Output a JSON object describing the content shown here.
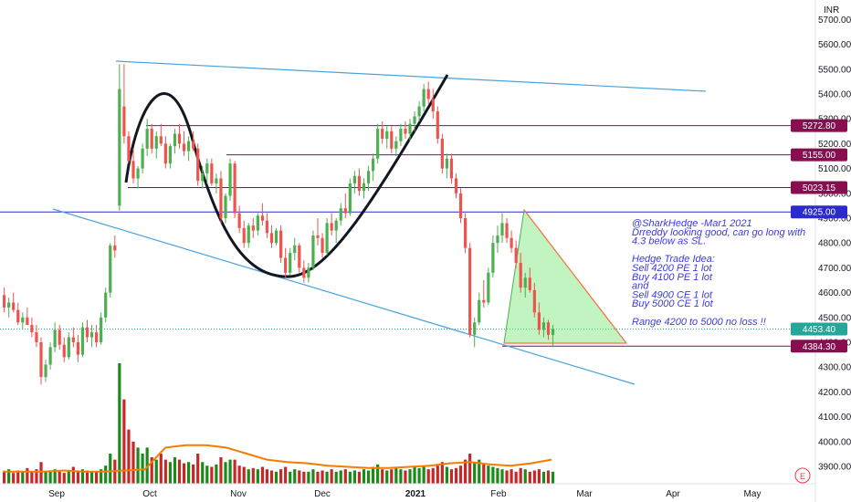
{
  "chart_data": {
    "type": "candlestick",
    "instrument_currency": "INR",
    "x_ticks": [
      "Sep",
      "Oct",
      "Nov",
      "Dec",
      "2021",
      "Feb",
      "Mar",
      "Apr",
      "May"
    ],
    "y_ticks": [
      "3900.00",
      "4000.00",
      "4100.00",
      "4200.00",
      "4300.00",
      "4400.00",
      "4500.00",
      "4600.00",
      "4700.00",
      "4800.00",
      "4900.00",
      "5000.00",
      "5100.00",
      "5200.00",
      "5300.00",
      "5400.00",
      "5500.00",
      "5600.00",
      "5700.00"
    ],
    "ylim": [
      3860,
      5730
    ],
    "price_labels": [
      {
        "text": "5272.80",
        "value": 5272.8,
        "color": "#880e4f"
      },
      {
        "text": "5155.00",
        "value": 5155.0,
        "color": "#880e4f"
      },
      {
        "text": "5023.15",
        "value": 5023.15,
        "color": "#880e4f"
      },
      {
        "text": "4925.00",
        "value": 4925.0,
        "color": "#2a2ad0"
      },
      {
        "text": "4453.40",
        "value": 4453.4,
        "color": "#26a69a"
      },
      {
        "text": "4384.30",
        "value": 4384.3,
        "color": "#880e4f"
      }
    ],
    "annotation_lines": [
      "@SharkHedge -Mar1 2021",
      "Drreddy looking good, can go long with",
      "4.3 below as SL.",
      "",
      "Hedge Trade Idea:",
      "Sell 4200 PE 1 lot",
      "Buy 4100 PE 1 lot",
      "and",
      "Sell 4900 CE 1 lot",
      "Buy 5000 CE 1 lot",
      "",
      "Range 4200 to 5000 no loss !!"
    ],
    "candles": [
      [
        4590,
        4620,
        4520,
        4540
      ],
      [
        4540,
        4580,
        4500,
        4560
      ],
      [
        4560,
        4600,
        4520,
        4530
      ],
      [
        4530,
        4560,
        4470,
        4480
      ],
      [
        4480,
        4520,
        4450,
        4500
      ],
      [
        4500,
        4540,
        4470,
        4470
      ],
      [
        4470,
        4500,
        4420,
        4440
      ],
      [
        4440,
        4470,
        4380,
        4400
      ],
      [
        4400,
        4420,
        4230,
        4260
      ],
      [
        4260,
        4330,
        4240,
        4310
      ],
      [
        4310,
        4400,
        4290,
        4380
      ],
      [
        4380,
        4480,
        4360,
        4450
      ],
      [
        4450,
        4470,
        4370,
        4390
      ],
      [
        4390,
        4420,
        4320,
        4340
      ],
      [
        4340,
        4440,
        4330,
        4420
      ],
      [
        4420,
        4460,
        4380,
        4400
      ],
      [
        4400,
        4430,
        4320,
        4350
      ],
      [
        4350,
        4480,
        4340,
        4460
      ],
      [
        4460,
        4490,
        4400,
        4420
      ],
      [
        4420,
        4470,
        4380,
        4440
      ],
      [
        4440,
        4470,
        4380,
        4400
      ],
      [
        4400,
        4520,
        4390,
        4500
      ],
      [
        4500,
        4620,
        4480,
        4600
      ],
      [
        4600,
        4800,
        4580,
        4790
      ],
      [
        4790,
        4830,
        4740,
        4770
      ],
      [
        4950,
        5520,
        4930,
        5420
      ],
      [
        5350,
        5520,
        5200,
        5230
      ],
      [
        5230,
        5250,
        5120,
        5130
      ],
      [
        5130,
        5180,
        5040,
        5060
      ],
      [
        5060,
        5110,
        5020,
        5100
      ],
      [
        5100,
        5200,
        5080,
        5180
      ],
      [
        5180,
        5300,
        5150,
        5260
      ],
      [
        5260,
        5280,
        5160,
        5180
      ],
      [
        5180,
        5250,
        5140,
        5230
      ],
      [
        5230,
        5280,
        5190,
        5200
      ],
      [
        5200,
        5230,
        5100,
        5120
      ],
      [
        5120,
        5200,
        5100,
        5190
      ],
      [
        5190,
        5260,
        5160,
        5240
      ],
      [
        5240,
        5280,
        5180,
        5200
      ],
      [
        5200,
        5250,
        5150,
        5170
      ],
      [
        5170,
        5230,
        5130,
        5210
      ],
      [
        5210,
        5250,
        5170,
        5180
      ],
      [
        5180,
        5200,
        5030,
        5050
      ],
      [
        5050,
        5110,
        5020,
        5080
      ],
      [
        5080,
        5140,
        5040,
        5120
      ],
      [
        5120,
        5140,
        5030,
        5040
      ],
      [
        5040,
        5080,
        5000,
        5060
      ],
      [
        5060,
        5090,
        4880,
        4900
      ],
      [
        4900,
        5000,
        4880,
        4990
      ],
      [
        4990,
        5140,
        4970,
        5120
      ],
      [
        5120,
        5130,
        4900,
        4920
      ],
      [
        4920,
        4950,
        4840,
        4860
      ],
      [
        4860,
        4890,
        4780,
        4800
      ],
      [
        4800,
        4880,
        4780,
        4870
      ],
      [
        4870,
        4900,
        4820,
        4850
      ],
      [
        4850,
        4920,
        4830,
        4910
      ],
      [
        4910,
        4960,
        4870,
        4890
      ],
      [
        4890,
        4920,
        4820,
        4840
      ],
      [
        4840,
        4870,
        4780,
        4800
      ],
      [
        4800,
        4860,
        4790,
        4850
      ],
      [
        4850,
        4870,
        4720,
        4740
      ],
      [
        4740,
        4780,
        4660,
        4680
      ],
      [
        4680,
        4780,
        4670,
        4760
      ],
      [
        4760,
        4820,
        4730,
        4790
      ],
      [
        4790,
        4800,
        4680,
        4700
      ],
      [
        4700,
        4730,
        4640,
        4660
      ],
      [
        4660,
        4720,
        4640,
        4700
      ],
      [
        4700,
        4850,
        4690,
        4830
      ],
      [
        4830,
        4900,
        4790,
        4820
      ],
      [
        4820,
        4840,
        4740,
        4760
      ],
      [
        4760,
        4900,
        4750,
        4880
      ],
      [
        4880,
        4920,
        4830,
        4850
      ],
      [
        4850,
        4900,
        4800,
        4890
      ],
      [
        4890,
        4960,
        4870,
        4940
      ],
      [
        4940,
        5000,
        4900,
        4920
      ],
      [
        4920,
        5060,
        4910,
        5040
      ],
      [
        5040,
        5090,
        5000,
        5070
      ],
      [
        5070,
        5100,
        4990,
        5010
      ],
      [
        5010,
        5060,
        4980,
        5040
      ],
      [
        5040,
        5110,
        5010,
        5090
      ],
      [
        5090,
        5160,
        5050,
        5140
      ],
      [
        5140,
        5280,
        5120,
        5260
      ],
      [
        5260,
        5290,
        5200,
        5220
      ],
      [
        5220,
        5270,
        5180,
        5250
      ],
      [
        5250,
        5270,
        5160,
        5180
      ],
      [
        5180,
        5230,
        5150,
        5210
      ],
      [
        5210,
        5280,
        5190,
        5260
      ],
      [
        5260,
        5290,
        5220,
        5240
      ],
      [
        5240,
        5300,
        5210,
        5280
      ],
      [
        5280,
        5330,
        5250,
        5310
      ],
      [
        5310,
        5370,
        5290,
        5350
      ],
      [
        5350,
        5440,
        5330,
        5420
      ],
      [
        5420,
        5450,
        5360,
        5380
      ],
      [
        5380,
        5420,
        5300,
        5330
      ],
      [
        5330,
        5350,
        5200,
        5220
      ],
      [
        5220,
        5240,
        5080,
        5100
      ],
      [
        5100,
        5160,
        5060,
        5140
      ],
      [
        5140,
        5160,
        5040,
        5060
      ],
      [
        5060,
        5080,
        4980,
        5000
      ],
      [
        5000,
        5020,
        4880,
        4900
      ],
      [
        4900,
        4920,
        4760,
        4780
      ],
      [
        4780,
        4800,
        4420,
        4430
      ],
      [
        4430,
        4500,
        4380,
        4480
      ],
      [
        4480,
        4600,
        4470,
        4570
      ],
      [
        4570,
        4650,
        4540,
        4560
      ],
      [
        4560,
        4700,
        4550,
        4680
      ],
      [
        4680,
        4830,
        4660,
        4800
      ],
      [
        4800,
        4870,
        4760,
        4830
      ],
      [
        4830,
        4920,
        4800,
        4880
      ],
      [
        4880,
        4900,
        4800,
        4820
      ],
      [
        4820,
        4850,
        4760,
        4780
      ],
      [
        4780,
        4810,
        4700,
        4720
      ],
      [
        4720,
        4760,
        4600,
        4620
      ],
      [
        4620,
        4680,
        4580,
        4660
      ],
      [
        4660,
        4700,
        4600,
        4610
      ],
      [
        4610,
        4640,
        4500,
        4520
      ],
      [
        4520,
        4560,
        4430,
        4450
      ],
      [
        4450,
        4500,
        4420,
        4480
      ],
      [
        4480,
        4490,
        4410,
        4430
      ],
      [
        4430,
        4470,
        4380,
        4453
      ]
    ],
    "volumes": [
      0.1,
      0.12,
      0.09,
      0.11,
      0.1,
      0.13,
      0.1,
      0.12,
      0.18,
      0.1,
      0.11,
      0.12,
      0.1,
      0.09,
      0.11,
      0.14,
      0.1,
      0.12,
      0.11,
      0.1,
      0.1,
      0.12,
      0.15,
      0.25,
      0.2,
      1.0,
      0.7,
      0.45,
      0.35,
      0.3,
      0.25,
      0.3,
      0.22,
      0.2,
      0.25,
      0.2,
      0.18,
      0.22,
      0.2,
      0.17,
      0.18,
      0.16,
      0.25,
      0.18,
      0.15,
      0.14,
      0.16,
      0.22,
      0.18,
      0.2,
      0.2,
      0.15,
      0.14,
      0.12,
      0.13,
      0.12,
      0.14,
      0.12,
      0.11,
      0.1,
      0.12,
      0.14,
      0.1,
      0.12,
      0.11,
      0.1,
      0.1,
      0.12,
      0.1,
      0.11,
      0.1,
      0.12,
      0.1,
      0.11,
      0.12,
      0.1,
      0.11,
      0.1,
      0.12,
      0.11,
      0.14,
      0.16,
      0.12,
      0.11,
      0.12,
      0.13,
      0.12,
      0.11,
      0.12,
      0.14,
      0.13,
      0.15,
      0.12,
      0.13,
      0.15,
      0.18,
      0.14,
      0.12,
      0.13,
      0.15,
      0.2,
      0.25,
      0.18,
      0.2,
      0.16,
      0.15,
      0.14,
      0.13,
      0.12,
      0.11,
      0.12,
      0.1,
      0.13,
      0.12,
      0.1,
      0.11,
      0.12,
      0.1,
      0.11,
      0.1
    ],
    "volume_ma": [
      0.1,
      0.1,
      0.1,
      0.11,
      0.1,
      0.1,
      0.11,
      0.12,
      0.3,
      0.32,
      0.32,
      0.3,
      0.25,
      0.2,
      0.18,
      0.17,
      0.15,
      0.14,
      0.13,
      0.13,
      0.14,
      0.15,
      0.17,
      0.18,
      0.16,
      0.15,
      0.17,
      0.2
    ]
  },
  "ui": {
    "currency_badge": "INR",
    "e_button": "E"
  }
}
